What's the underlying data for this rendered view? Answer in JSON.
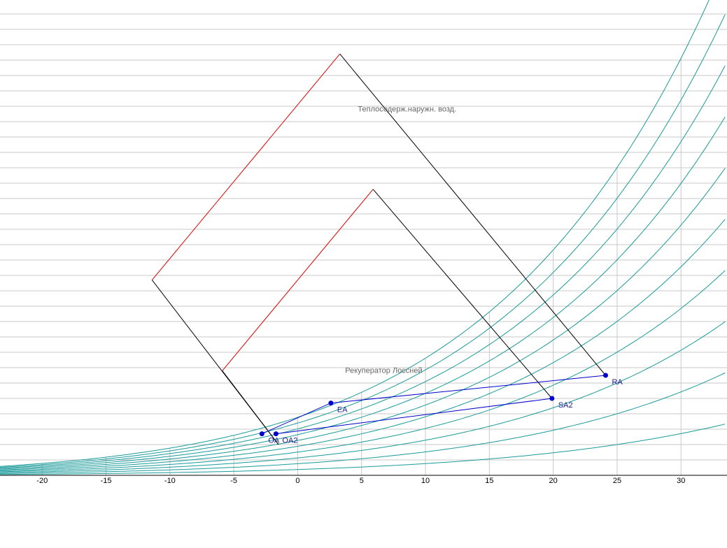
{
  "chart_data": {
    "type": "line",
    "title": "",
    "xlabel": "",
    "ylabel": "",
    "x_ticks": [
      -20,
      -15,
      -10,
      -5,
      0,
      5,
      10,
      15,
      20,
      25,
      30
    ],
    "xlim": [
      -23.3,
      33.6
    ],
    "ylim": [
      0,
      32
    ],
    "grid": true,
    "humidity_curves": [
      10,
      20,
      30,
      40,
      50,
      60,
      70,
      80,
      90,
      100
    ],
    "processes": [
      {
        "name": "OA-EA",
        "from": "OA",
        "to": "EA"
      },
      {
        "name": "OA2-SA2",
        "from": "OA2",
        "to": "SA2"
      },
      {
        "name": "EA-RA",
        "from": "EA",
        "to": "RA"
      }
    ],
    "points": [
      {
        "label": "OA",
        "x": -2.8,
        "y": 2.7
      },
      {
        "label": "OA2",
        "x": -1.7,
        "y": 2.7
      },
      {
        "label": "EA",
        "x": 2.6,
        "y": 4.7
      },
      {
        "label": "SA2",
        "x": 19.9,
        "y": 5.0
      },
      {
        "label": "RA",
        "x": 24.1,
        "y": 6.5
      }
    ],
    "annotations": [
      {
        "text": "Теплосодерж.наружн. возд.",
        "polygon": [
          [
            -1.5,
            2.0
          ],
          [
            -11.4,
            12.7
          ],
          [
            3.3,
            27.4
          ],
          [
            24.1,
            6.5
          ]
        ]
      },
      {
        "text": "Рекуператор Лоссней",
        "polygon": [
          [
            -1.5,
            2.0
          ],
          [
            -5.9,
            6.8
          ],
          [
            5.9,
            18.6
          ],
          [
            19.9,
            5.0
          ]
        ]
      }
    ],
    "colors": {
      "curves": "#1a9a9a",
      "grid": "#c8c8c8",
      "process": "#0000cc",
      "enthalpy_edge": "#dd0000",
      "box_edge": "#000000"
    }
  }
}
